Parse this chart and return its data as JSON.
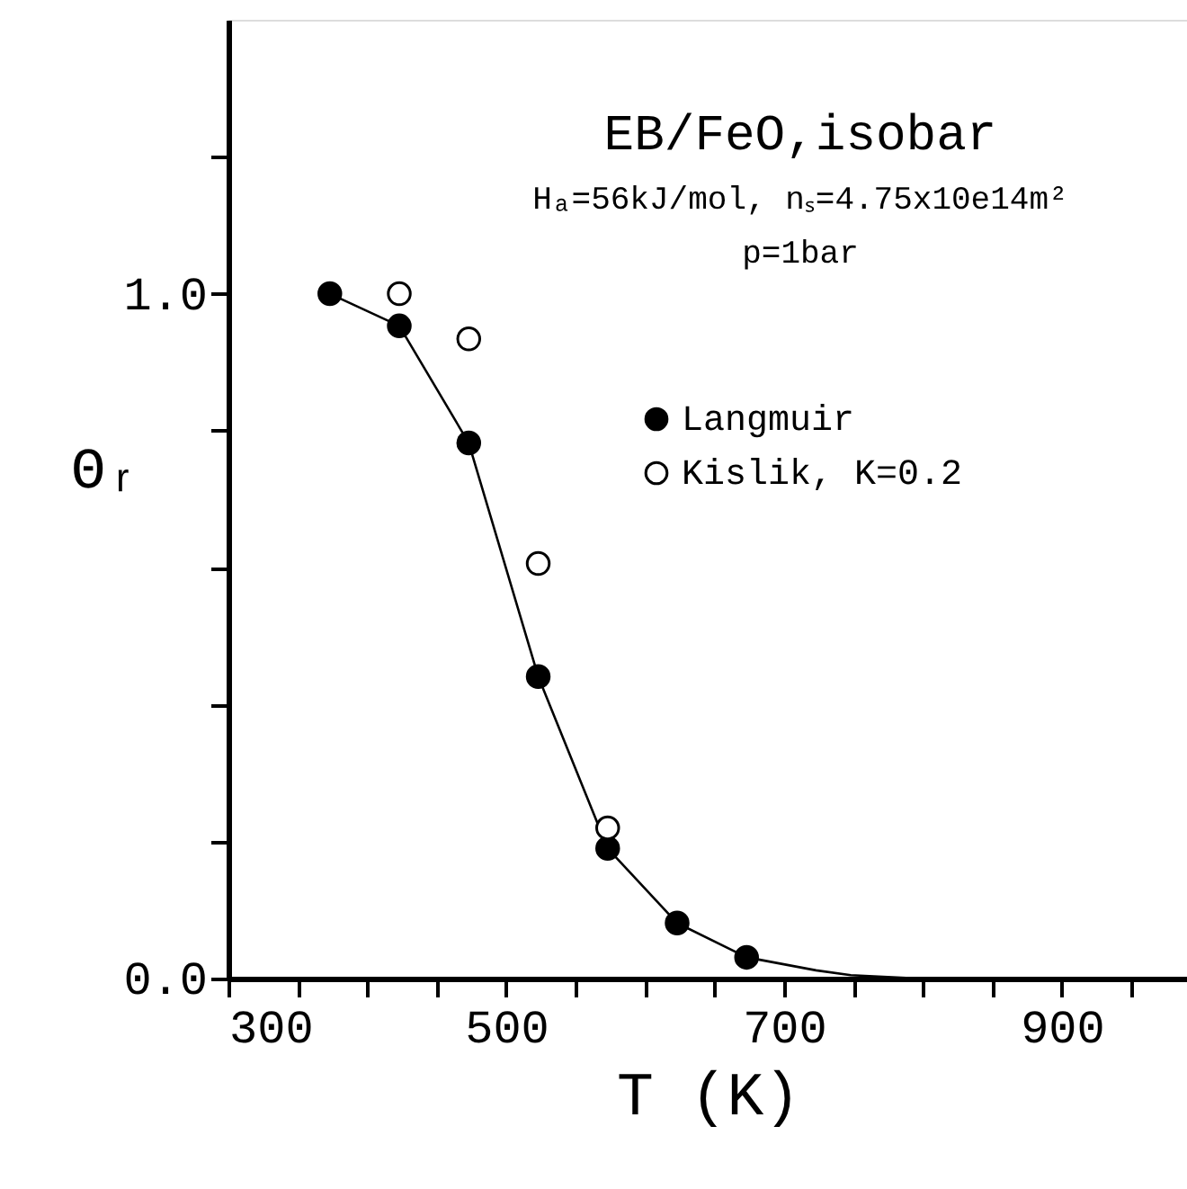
{
  "chart_data": {
    "type": "scatter",
    "title": "EB/FeO,isobar",
    "annotations": [
      "Hₐ=56kJ/mol, nₛ=4.75x10e14m²",
      "p=1bar"
    ],
    "xlabel": "T (K)",
    "ylabel": "Θᵣ",
    "xlim": [
      300,
      990
    ],
    "ylim": [
      0,
      1.4
    ],
    "xticks": [
      300,
      {
        "value": 350,
        "label": null
      },
      {
        "value": 400,
        "label": null
      },
      {
        "value": 450,
        "label": null
      },
      500,
      {
        "value": 550,
        "label": null
      },
      {
        "value": 600,
        "label": null
      },
      {
        "value": 650,
        "label": null
      },
      700,
      {
        "value": 750,
        "label": null
      },
      {
        "value": 800,
        "label": null
      },
      {
        "value": 850,
        "label": null
      },
      900,
      {
        "value": 950,
        "label": null
      }
    ],
    "yticks": [
      {
        "value": 0,
        "label": "0.0"
      },
      {
        "value": 0.2,
        "label": null
      },
      {
        "value": 0.4,
        "label": null
      },
      {
        "value": 0.6,
        "label": null
      },
      {
        "value": 0.8,
        "label": null
      },
      {
        "value": 1.0,
        "label": "1.0"
      },
      {
        "value": 1.2,
        "label": null
      }
    ],
    "grid": false,
    "legend": "top right",
    "series": [
      {
        "type": "line",
        "color": "#000000",
        "marker": "none",
        "x": [
          373,
          423,
          473,
          523,
          573,
          623,
          673,
          723,
          748,
          798
        ],
        "values": [
          1.0,
          0.953,
          0.782,
          0.441,
          0.19,
          0.081,
          0.031,
          0.012,
          0.005,
          0.0
        ]
      },
      {
        "name": "Langmuir",
        "color": "#000000",
        "marker": "circle",
        "x": [
          373,
          423,
          473,
          523,
          573,
          623,
          673
        ],
        "values": [
          1.0,
          0.953,
          0.782,
          0.441,
          0.19,
          0.081,
          0.031
        ]
      },
      {
        "name": "Kislik, K=0.2",
        "color": "#ffffff",
        "marker": "circle",
        "x": [
          423,
          473,
          523,
          573
        ],
        "values": [
          1.0,
          0.934,
          0.606,
          0.22
        ]
      }
    ]
  }
}
